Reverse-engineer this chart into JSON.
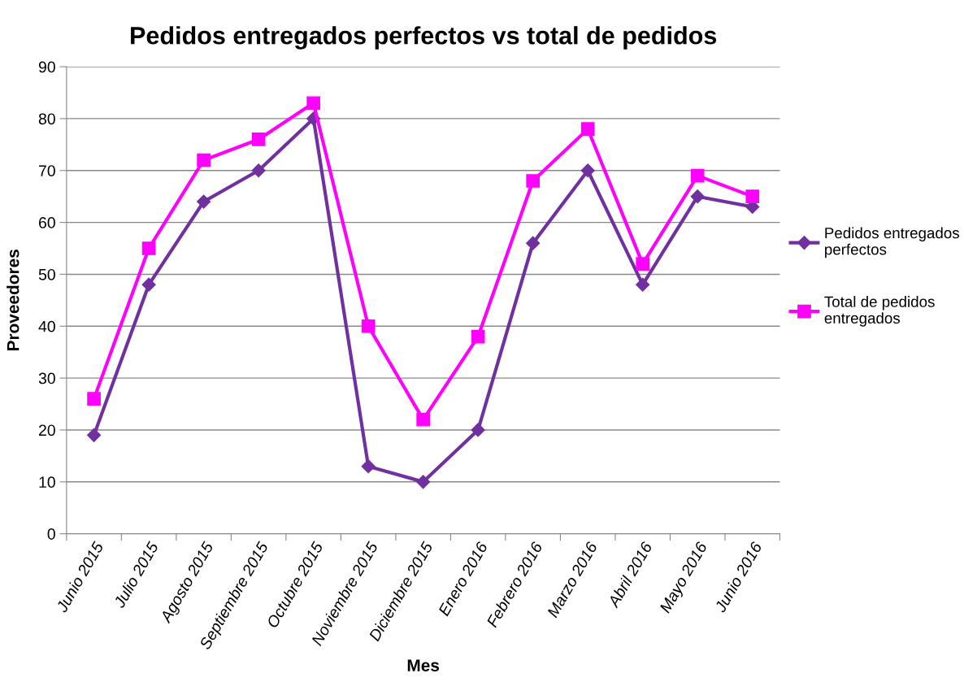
{
  "chart_data": {
    "type": "line",
    "title": "Pedidos entregados perfectos vs total de pedidos",
    "xlabel": "Mes",
    "ylabel": "Proveedores",
    "categories": [
      "Junio 2015",
      "Julio 2015",
      "Agosto 2015",
      "Septiembre 2015",
      "Octubre 2015",
      "Noviembre 2015",
      "Diciembre 2015",
      "Enero 2016",
      "Febrero 2016",
      "Marzo 2016",
      "Abril 2016",
      "Mayo 2016",
      "Junio 2016"
    ],
    "series": [
      {
        "name": "Pedidos entregados\nperfectos",
        "color": "#7030a0",
        "marker": "diamond",
        "values": [
          19,
          48,
          64,
          70,
          80,
          13,
          10,
          20,
          56,
          70,
          48,
          65,
          63
        ]
      },
      {
        "name": "Total de pedidos\nentregados",
        "color": "#ff00ff",
        "marker": "square",
        "values": [
          26,
          55,
          72,
          76,
          83,
          40,
          22,
          38,
          68,
          78,
          52,
          69,
          65
        ]
      }
    ],
    "ylim": [
      0,
      90
    ],
    "yticks": [
      0,
      10,
      20,
      30,
      40,
      50,
      60,
      70,
      80,
      90
    ],
    "grid": "y",
    "legend": "right",
    "line_style": "solid"
  }
}
